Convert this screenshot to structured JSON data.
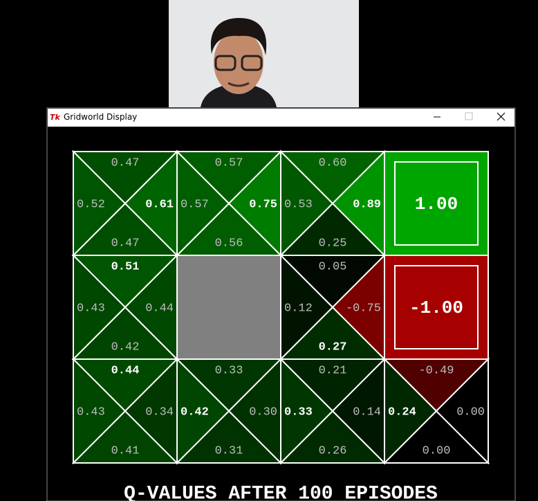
{
  "window": {
    "title": "Gridworld Display"
  },
  "grid": {
    "rows": [
      [
        {
          "north": "0.47",
          "south": "0.47",
          "west": "0.52",
          "east": "0.61",
          "best": "east"
        },
        {
          "north": "0.57",
          "south": "0.56",
          "west": "0.57",
          "east": "0.75",
          "best": "east"
        },
        {
          "north": "0.60",
          "south": "0.25",
          "west": "0.53",
          "east": "0.89",
          "best": "east"
        },
        {
          "terminal": "1.00"
        }
      ],
      [
        {
          "north": "0.51",
          "south": "0.42",
          "west": "0.43",
          "east": "0.44",
          "best": "north"
        },
        {
          "wall": true
        },
        {
          "north": "0.05",
          "south": "0.27",
          "west": "0.12",
          "east": "-0.75",
          "best": "south"
        },
        {
          "terminal": "-1.00"
        }
      ],
      [
        {
          "north": "0.44",
          "south": "0.41",
          "west": "0.43",
          "east": "0.34",
          "best": "north"
        },
        {
          "north": "0.33",
          "south": "0.31",
          "west": "0.42",
          "east": "0.30",
          "best": "west"
        },
        {
          "north": "0.21",
          "south": "0.26",
          "west": "0.33",
          "east": "0.14",
          "best": "west"
        },
        {
          "north": "-0.49",
          "south": "0.00",
          "west": "0.24",
          "east": "0.00",
          "best": "west"
        }
      ]
    ]
  },
  "caption": "Q-VALUES AFTER 100 EPISODES"
}
